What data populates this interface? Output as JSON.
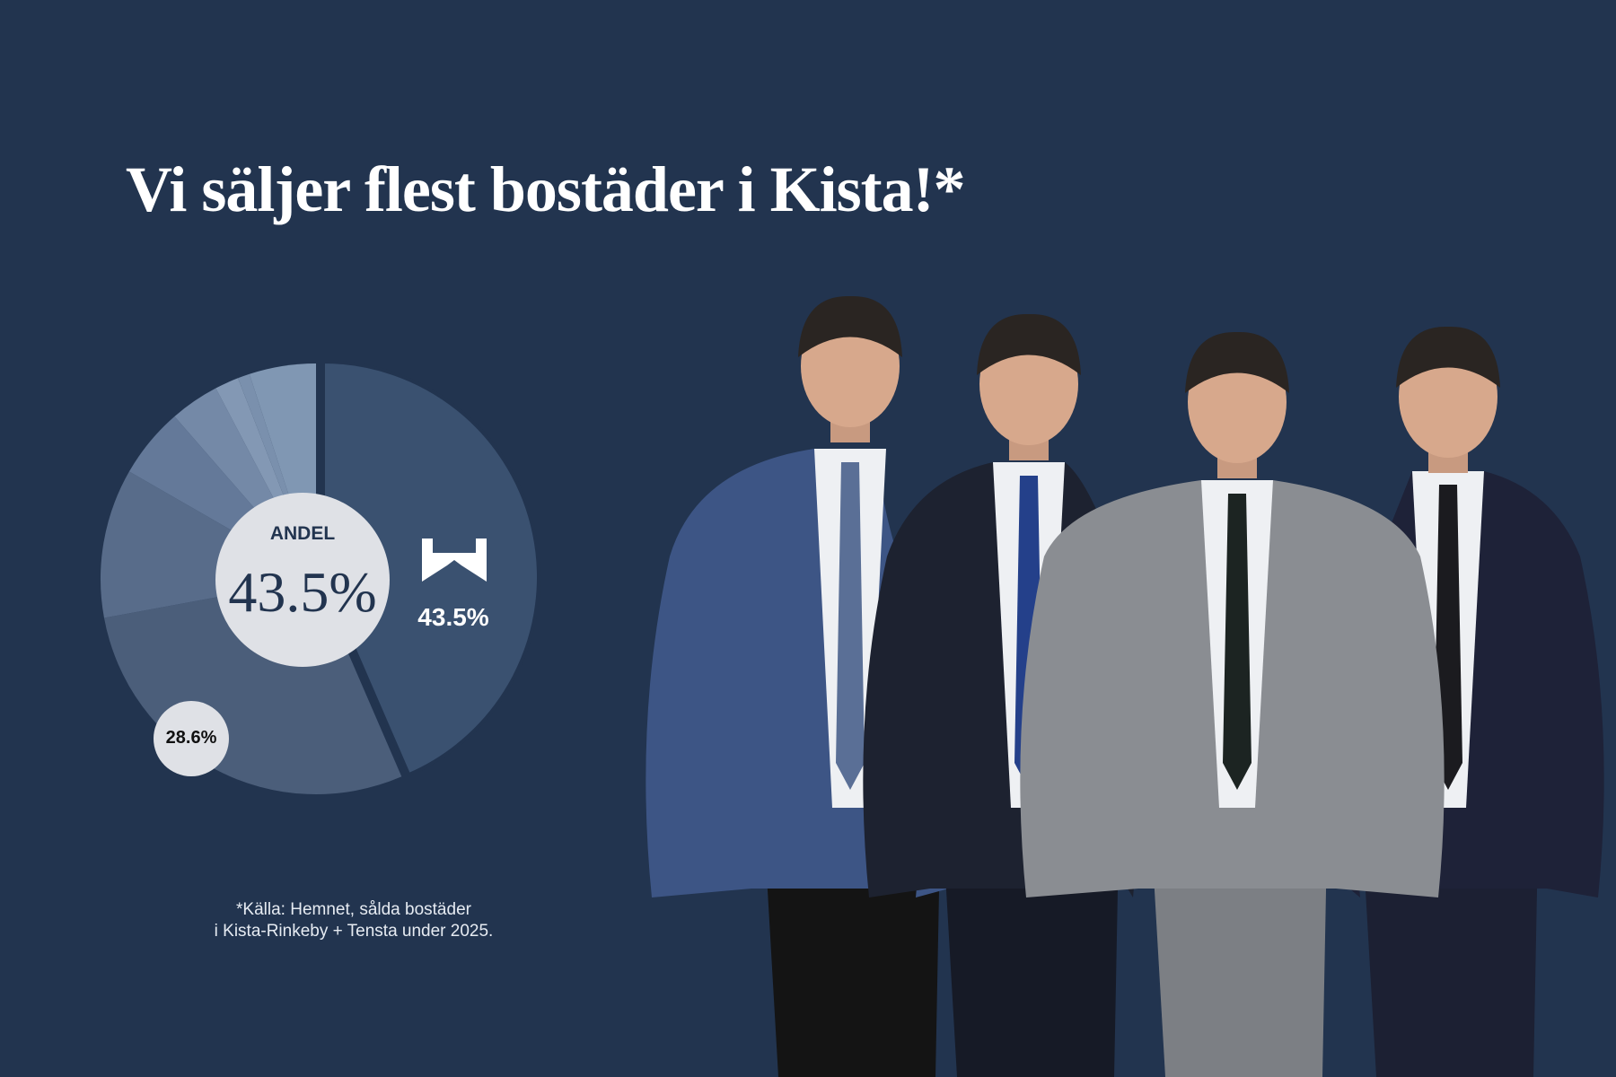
{
  "title": "Vi säljer flest bostäder i Kista!*",
  "chart_data": {
    "type": "pie",
    "style": "donut",
    "values": [
      43.5,
      28.6,
      11.2,
      5.3,
      3.7,
      1.8,
      0.9,
      5.0
    ],
    "colors": [
      "#3a5170",
      "#4b5e7a",
      "#586c8a",
      "#647999",
      "#7489a7",
      "#8398b4",
      "#7a90ad",
      "#8097b3"
    ],
    "center_label": "ANDEL",
    "center_value": "43.5%",
    "highlight_label": "43.5%",
    "second_label": "28.6%"
  },
  "footnote": {
    "line1": "*Källa: Hemnet, sålda bostäder",
    "line2": "i Kista-Rinkeby + Tensta under 2025."
  },
  "colors": {
    "background": "#22344f",
    "center": "#dfe1e6"
  },
  "people": [
    {
      "suit": "#3d5585",
      "tie": "#5a6f96"
    },
    {
      "suit": "#1d2230",
      "tie": "#24408a"
    },
    {
      "suit": "#8a8d92",
      "tie": "#1c2422"
    },
    {
      "suit": "#1e2238",
      "tie": "#1b1b1f"
    }
  ]
}
